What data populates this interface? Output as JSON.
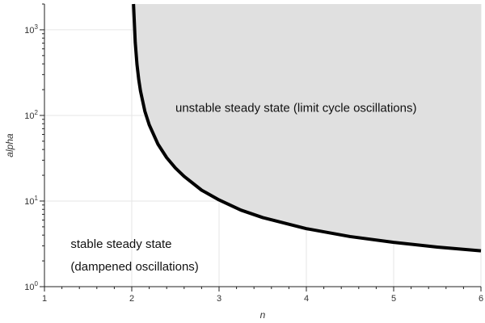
{
  "chart_data": {
    "type": "area",
    "title": "",
    "xlabel": "n",
    "ylabel": "alpha",
    "xlim": [
      1,
      6
    ],
    "ylim": [
      1,
      2000
    ],
    "yscale": "log",
    "grid": true,
    "x_ticks": [
      1,
      2,
      3,
      4,
      5,
      6
    ],
    "x_tick_labels": [
      "1",
      "2",
      "3",
      "4",
      "5",
      "6"
    ],
    "y_ticks": [
      1,
      10,
      100,
      1000
    ],
    "y_tick_labels": [
      {
        "base": "10",
        "exp": "0"
      },
      {
        "base": "10",
        "exp": "1"
      },
      {
        "base": "10",
        "exp": "2"
      },
      {
        "base": "10",
        "exp": "3"
      }
    ],
    "series": [
      {
        "x": [
          2.02,
          2.04,
          2.06,
          2.08,
          2.1,
          2.15,
          2.2,
          2.3,
          2.4,
          2.5,
          2.6,
          2.8,
          3.0,
          3.25,
          3.5,
          4.0,
          4.5,
          5.0,
          5.5,
          6.0
        ],
        "y": [
          2003,
          710,
          392,
          262,
          193,
          112,
          77.7,
          46.2,
          32.1,
          24.3,
          19.4,
          13.4,
          10.3,
          7.84,
          6.41,
          4.76,
          3.85,
          3.29,
          2.9,
          2.62
        ],
        "color": "#000000",
        "fill_above": "#e0e0e0"
      }
    ],
    "annotations": [
      {
        "text": "unstable steady state (limit cycle oscillations)",
        "x": 2.5,
        "y": 110
      },
      {
        "text": "stable steady state",
        "x": 1.3,
        "y": 2.85
      },
      {
        "text": "(dampened oscillations)",
        "x": 1.3,
        "y": 1.55
      }
    ]
  }
}
